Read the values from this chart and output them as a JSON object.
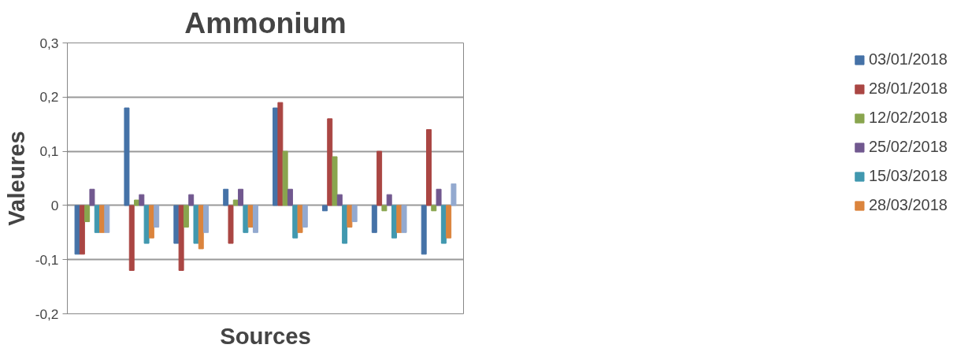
{
  "chart_data": {
    "type": "bar",
    "title": "Ammonium",
    "xlabel": "Sources",
    "ylabel": "Valeures",
    "categories": [
      null,
      null,
      null,
      null,
      null,
      null,
      null,
      null
    ],
    "series": [
      {
        "name": "03/01/2018",
        "color": "#4572a7",
        "values": [
          -0.09,
          0.18,
          -0.07,
          0.03,
          0.18,
          -0.01,
          -0.05,
          -0.09
        ]
      },
      {
        "name": "28/01/2018",
        "color": "#aa4643",
        "values": [
          -0.09,
          -0.12,
          -0.12,
          -0.07,
          0.19,
          0.16,
          0.1,
          0.14
        ]
      },
      {
        "name": "12/02/2018",
        "color": "#89a54e",
        "values": [
          -0.03,
          0.01,
          -0.04,
          0.01,
          0.1,
          0.09,
          -0.01,
          -0.01
        ]
      },
      {
        "name": "25/02/2018",
        "color": "#71588f",
        "values": [
          0.03,
          0.02,
          0.02,
          0.03,
          0.03,
          0.02,
          0.02,
          0.03
        ]
      },
      {
        "name": "15/03/2018",
        "color": "#4198af",
        "values": [
          -0.05,
          -0.07,
          -0.07,
          -0.05,
          -0.06,
          -0.07,
          -0.06,
          -0.07
        ]
      },
      {
        "name": "28/03/2018",
        "color": "#db843d",
        "values": [
          -0.05,
          -0.06,
          -0.08,
          -0.04,
          -0.05,
          -0.04,
          -0.05,
          -0.06
        ]
      },
      {
        "color": "#93a9cf",
        "values": [
          -0.05,
          -0.04,
          -0.05,
          -0.05,
          -0.04,
          -0.03,
          -0.05,
          0.04
        ]
      }
    ],
    "ylim": [
      -0.2,
      0.3
    ],
    "yticks": [
      {
        "value": -0.2,
        "label": "-0,2"
      },
      {
        "value": -0.1,
        "label": "-0,1"
      },
      {
        "value": 0,
        "label": "0"
      },
      {
        "value": 0.1,
        "label": "0,1"
      },
      {
        "value": 0.2,
        "label": "0,2"
      },
      {
        "value": 0.3,
        "label": "0,3"
      }
    ],
    "grid": "y",
    "legend": "right",
    "tick_labels": "y"
  }
}
